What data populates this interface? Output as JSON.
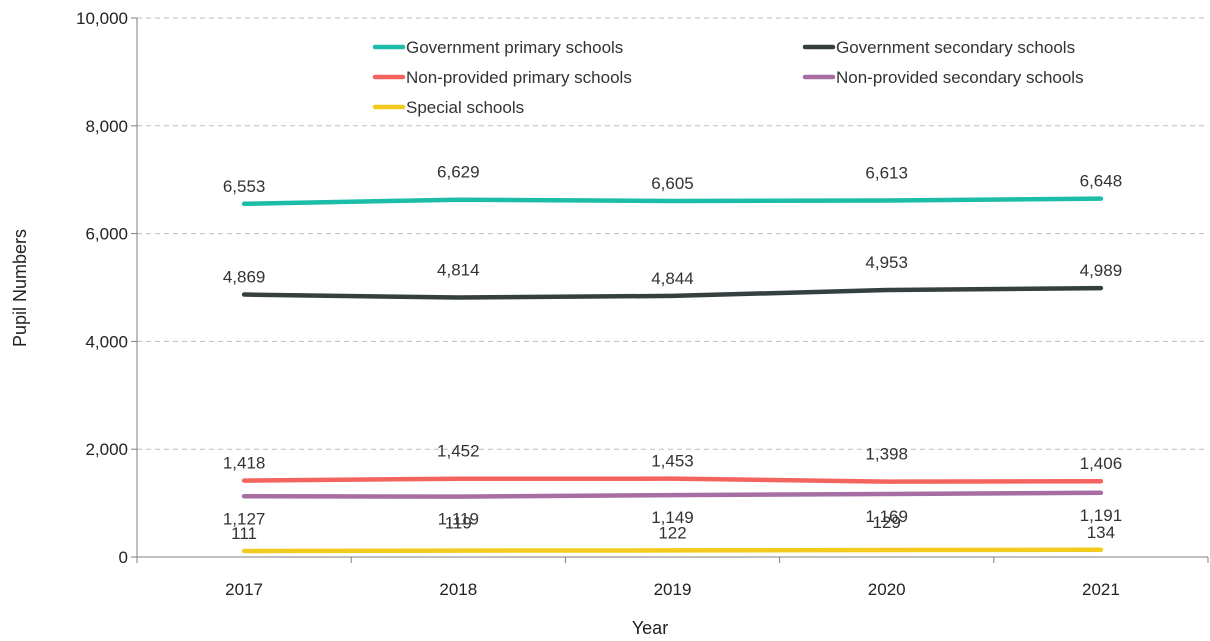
{
  "chart_data": {
    "type": "line",
    "title": "",
    "xlabel": "Year",
    "ylabel": "Pupil Numbers",
    "x": [
      "2017",
      "2018",
      "2019",
      "2020",
      "2021"
    ],
    "ylim": [
      0,
      10000
    ],
    "yticks": [
      0,
      2000,
      4000,
      6000,
      8000,
      10000
    ],
    "ytick_labels": [
      "0",
      "2,000",
      "4,000",
      "6,000",
      "8,000",
      "10,000"
    ],
    "grid": "horizontal dashed",
    "legend_position": "top",
    "series": [
      {
        "name": "Government primary schools",
        "color": "#1bbca8",
        "values": [
          6553,
          6629,
          6605,
          6613,
          6648
        ],
        "labels": [
          "6,553",
          "6,629",
          "6,605",
          "6,613",
          "6,648"
        ]
      },
      {
        "name": "Government secondary schools",
        "color": "#33403f",
        "values": [
          4869,
          4814,
          4844,
          4953,
          4989
        ],
        "labels": [
          "4,869",
          "4,814",
          "4,844",
          "4,953",
          "4,989"
        ]
      },
      {
        "name": "Non-provided primary schools",
        "color": "#f4645f",
        "values": [
          1418,
          1452,
          1453,
          1398,
          1406
        ],
        "labels": [
          "1,418",
          "1,452",
          "1,453",
          "1,398",
          "1,406"
        ]
      },
      {
        "name": "Non-provided secondary schools",
        "color": "#a66ea2",
        "values": [
          1127,
          1119,
          1149,
          1169,
          1191
        ],
        "labels": [
          "1,127",
          "1,119",
          "1,149",
          "1,169",
          "1,191"
        ]
      },
      {
        "name": "Special schools",
        "color": "#f2cb1e",
        "values": [
          111,
          119,
          122,
          129,
          134
        ],
        "labels": [
          "111",
          "119",
          "122",
          "129",
          "134"
        ]
      }
    ]
  }
}
